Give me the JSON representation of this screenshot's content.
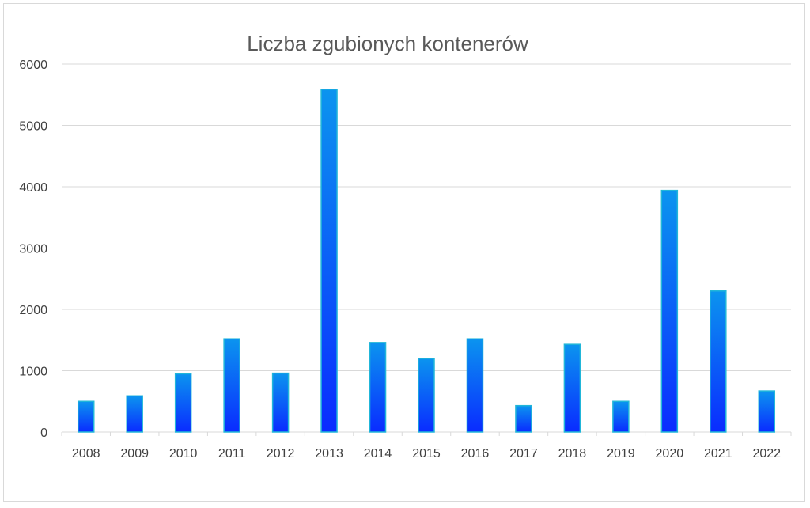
{
  "chart_data": {
    "type": "bar",
    "title": "Liczba zgubionych kontenerów",
    "xlabel": "",
    "ylabel": "",
    "categories": [
      "2008",
      "2009",
      "2010",
      "2011",
      "2012",
      "2013",
      "2014",
      "2015",
      "2016",
      "2017",
      "2018",
      "2019",
      "2020",
      "2021",
      "2022"
    ],
    "values": [
      500,
      590,
      950,
      1520,
      960,
      5590,
      1460,
      1200,
      1520,
      430,
      1430,
      500,
      3940,
      2300,
      670
    ],
    "ylim": [
      0,
      6000
    ],
    "yticks": [
      "0",
      "1000",
      "2000",
      "3000",
      "4000",
      "5000",
      "6000"
    ],
    "grid": true,
    "legend": "none",
    "colors": {
      "bar_top": "#0b94ef",
      "bar_bottom": "#0a2bff",
      "bar_edge": "#21b6d9",
      "grid": "#d9d9d9"
    }
  }
}
